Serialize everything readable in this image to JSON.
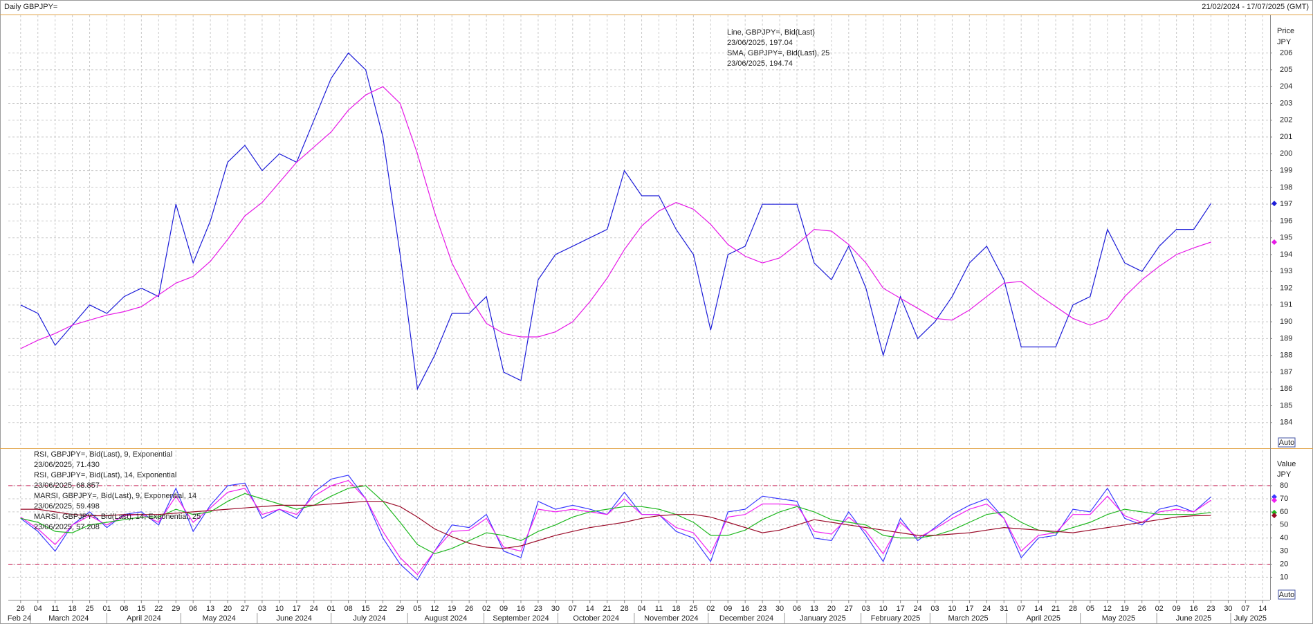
{
  "header": {
    "title": "Daily GBPJPY=",
    "range": "21/02/2024 - 17/07/2025 (GMT)"
  },
  "chart_data": [
    {
      "type": "line",
      "axis_title": "Price",
      "axis_unit": "JPY",
      "auto_label": "Auto",
      "x": [
        "2024-02-26",
        "2024-03-04",
        "2024-03-11",
        "2024-03-18",
        "2024-03-25",
        "2024-04-01",
        "2024-04-08",
        "2024-04-15",
        "2024-04-22",
        "2024-04-29",
        "2024-05-06",
        "2024-05-13",
        "2024-05-20",
        "2024-05-27",
        "2024-06-03",
        "2024-06-10",
        "2024-06-17",
        "2024-06-24",
        "2024-07-01",
        "2024-07-08",
        "2024-07-15",
        "2024-07-22",
        "2024-07-29",
        "2024-08-05",
        "2024-08-12",
        "2024-08-19",
        "2024-08-26",
        "2024-09-02",
        "2024-09-09",
        "2024-09-16",
        "2024-09-23",
        "2024-09-30",
        "2024-10-07",
        "2024-10-14",
        "2024-10-21",
        "2024-10-28",
        "2024-11-04",
        "2024-11-11",
        "2024-11-18",
        "2024-11-25",
        "2024-12-02",
        "2024-12-09",
        "2024-12-16",
        "2024-12-23",
        "2024-12-30",
        "2025-01-06",
        "2025-01-13",
        "2025-01-20",
        "2025-01-27",
        "2025-02-03",
        "2025-02-10",
        "2025-02-17",
        "2025-02-24",
        "2025-03-03",
        "2025-03-10",
        "2025-03-17",
        "2025-03-24",
        "2025-03-31",
        "2025-04-07",
        "2025-04-14",
        "2025-04-21",
        "2025-04-28",
        "2025-05-05",
        "2025-05-12",
        "2025-05-19",
        "2025-05-26",
        "2025-06-02",
        "2025-06-09",
        "2025-06-16",
        "2025-06-23"
      ],
      "xlim": [
        "2024-02-21",
        "2025-07-17"
      ],
      "ylim": [
        182.55,
        208.25
      ],
      "yticks": [
        184,
        185,
        186,
        187,
        188,
        189,
        190,
        191,
        192,
        193,
        194,
        195,
        196,
        197,
        198,
        199,
        200,
        201,
        202,
        203,
        204,
        205,
        206
      ],
      "grid": true,
      "series": [
        {
          "name": "Line, GBPJPY=, Bid(Last)",
          "value_label": "23/06/2025, 197.04",
          "color": "#1c1cd8",
          "values": [
            191.0,
            190.5,
            188.6,
            189.8,
            191.0,
            190.5,
            191.5,
            192.0,
            191.5,
            197.0,
            193.5,
            196.0,
            199.5,
            200.5,
            199.0,
            200.0,
            199.5,
            202.0,
            204.5,
            206.0,
            205.0,
            201.0,
            194.0,
            186.0,
            188.0,
            190.5,
            190.5,
            191.5,
            187.0,
            186.5,
            192.5,
            194.0,
            194.5,
            195.0,
            195.5,
            199.0,
            197.5,
            197.5,
            195.5,
            194.0,
            189.5,
            194.0,
            194.5,
            197.0,
            197.0,
            197.0,
            193.5,
            192.5,
            194.5,
            192.0,
            188.0,
            191.5,
            189.0,
            190.0,
            191.5,
            193.5,
            194.5,
            192.5,
            188.5,
            188.5,
            188.5,
            191.0,
            191.5,
            195.5,
            193.5,
            193.0,
            194.5,
            195.5,
            195.5,
            197.04
          ]
        },
        {
          "name": "SMA, GBPJPY=, Bid(Last),  25",
          "value_label": "23/06/2025, 194.74",
          "color": "#e619e6",
          "values": [
            188.4,
            188.9,
            189.3,
            189.8,
            190.1,
            190.4,
            190.6,
            190.9,
            191.6,
            192.3,
            192.7,
            193.6,
            194.9,
            196.3,
            197.1,
            198.3,
            199.5,
            200.4,
            201.3,
            202.6,
            203.5,
            204.0,
            203.0,
            200.0,
            196.5,
            193.5,
            191.5,
            189.9,
            189.3,
            189.1,
            189.1,
            189.4,
            190.0,
            191.2,
            192.6,
            194.3,
            195.7,
            196.6,
            197.1,
            196.7,
            195.8,
            194.6,
            193.9,
            193.5,
            193.8,
            194.6,
            195.5,
            195.4,
            194.6,
            193.5,
            192.0,
            191.4,
            190.8,
            190.2,
            190.1,
            190.7,
            191.5,
            192.3,
            192.4,
            191.6,
            190.9,
            190.2,
            189.8,
            190.2,
            191.5,
            192.5,
            193.3,
            194.0,
            194.4,
            194.74
          ]
        }
      ]
    },
    {
      "type": "line",
      "axis_title": "Value",
      "axis_unit": "JPY",
      "auto_label": "Auto",
      "ylim": [
        -6.7,
        107
      ],
      "yticks": [
        10,
        20,
        30,
        40,
        50,
        60,
        70,
        80
      ],
      "levels": [
        80,
        20
      ],
      "level_color": "#c0003c",
      "grid": true,
      "xticks": [
        {
          "value": "2024-02-26",
          "label": "26"
        },
        {
          "value": "2024-03-04",
          "label": "04"
        },
        {
          "value": "2024-03-11",
          "label": "11"
        },
        {
          "value": "2024-03-18",
          "label": "18"
        },
        {
          "value": "2024-03-25",
          "label": "25"
        },
        {
          "value": "2024-04-01",
          "label": "01"
        },
        {
          "value": "2024-04-08",
          "label": "08"
        },
        {
          "value": "2024-04-15",
          "label": "15"
        },
        {
          "value": "2024-04-22",
          "label": "22"
        },
        {
          "value": "2024-04-29",
          "label": "29"
        },
        {
          "value": "2024-05-06",
          "label": "06"
        },
        {
          "value": "2024-05-13",
          "label": "13"
        },
        {
          "value": "2024-05-20",
          "label": "20"
        },
        {
          "value": "2024-05-27",
          "label": "27"
        },
        {
          "value": "2024-06-03",
          "label": "03"
        },
        {
          "value": "2024-06-10",
          "label": "10"
        },
        {
          "value": "2024-06-17",
          "label": "17"
        },
        {
          "value": "2024-06-24",
          "label": "24"
        },
        {
          "value": "2024-07-01",
          "label": "01"
        },
        {
          "value": "2024-07-08",
          "label": "08"
        },
        {
          "value": "2024-07-15",
          "label": "15"
        },
        {
          "value": "2024-07-22",
          "label": "22"
        },
        {
          "value": "2024-07-29",
          "label": "29"
        },
        {
          "value": "2024-08-05",
          "label": "05"
        },
        {
          "value": "2024-08-12",
          "label": "12"
        },
        {
          "value": "2024-08-19",
          "label": "19"
        },
        {
          "value": "2024-08-26",
          "label": "26"
        },
        {
          "value": "2024-09-02",
          "label": "02"
        },
        {
          "value": "2024-09-09",
          "label": "09"
        },
        {
          "value": "2024-09-16",
          "label": "16"
        },
        {
          "value": "2024-09-23",
          "label": "23"
        },
        {
          "value": "2024-09-30",
          "label": "30"
        },
        {
          "value": "2024-10-07",
          "label": "07"
        },
        {
          "value": "2024-10-14",
          "label": "14"
        },
        {
          "value": "2024-10-21",
          "label": "21"
        },
        {
          "value": "2024-10-28",
          "label": "28"
        },
        {
          "value": "2024-11-04",
          "label": "04"
        },
        {
          "value": "2024-11-11",
          "label": "11"
        },
        {
          "value": "2024-11-18",
          "label": "18"
        },
        {
          "value": "2024-11-25",
          "label": "25"
        },
        {
          "value": "2024-12-02",
          "label": "02"
        },
        {
          "value": "2024-12-09",
          "label": "09"
        },
        {
          "value": "2024-12-16",
          "label": "16"
        },
        {
          "value": "2024-12-23",
          "label": "23"
        },
        {
          "value": "2024-12-30",
          "label": "30"
        },
        {
          "value": "2025-01-06",
          "label": "06"
        },
        {
          "value": "2025-01-13",
          "label": "13"
        },
        {
          "value": "2025-01-20",
          "label": "20"
        },
        {
          "value": "2025-01-27",
          "label": "27"
        },
        {
          "value": "2025-02-03",
          "label": "03"
        },
        {
          "value": "2025-02-10",
          "label": "10"
        },
        {
          "value": "2025-02-17",
          "label": "17"
        },
        {
          "value": "2025-02-24",
          "label": "24"
        },
        {
          "value": "2025-03-03",
          "label": "03"
        },
        {
          "value": "2025-03-10",
          "label": "10"
        },
        {
          "value": "2025-03-17",
          "label": "17"
        },
        {
          "value": "2025-03-24",
          "label": "24"
        },
        {
          "value": "2025-03-31",
          "label": "31"
        },
        {
          "value": "2025-04-07",
          "label": "07"
        },
        {
          "value": "2025-04-14",
          "label": "14"
        },
        {
          "value": "2025-04-21",
          "label": "21"
        },
        {
          "value": "2025-04-28",
          "label": "28"
        },
        {
          "value": "2025-05-05",
          "label": "05"
        },
        {
          "value": "2025-05-12",
          "label": "12"
        },
        {
          "value": "2025-05-19",
          "label": "19"
        },
        {
          "value": "2025-05-26",
          "label": "26"
        },
        {
          "value": "2025-06-02",
          "label": "02"
        },
        {
          "value": "2025-06-09",
          "label": "09"
        },
        {
          "value": "2025-06-16",
          "label": "16"
        },
        {
          "value": "2025-06-23",
          "label": "23"
        },
        {
          "value": "2025-06-30",
          "label": "30"
        },
        {
          "value": "2025-07-07",
          "label": "07"
        },
        {
          "value": "2025-07-14",
          "label": "14"
        }
      ],
      "month_labels": [
        {
          "value": "2024-02",
          "label": "Feb 24"
        },
        {
          "value": "2024-03",
          "label": "March 2024"
        },
        {
          "value": "2024-04",
          "label": "April 2024"
        },
        {
          "value": "2024-05",
          "label": "May 2024"
        },
        {
          "value": "2024-06",
          "label": "June 2024"
        },
        {
          "value": "2024-07",
          "label": "July 2024"
        },
        {
          "value": "2024-08",
          "label": "August 2024"
        },
        {
          "value": "2024-09",
          "label": "September 2024"
        },
        {
          "value": "2024-10",
          "label": "October 2024"
        },
        {
          "value": "2024-11",
          "label": "November 2024"
        },
        {
          "value": "2024-12",
          "label": "December 2024"
        },
        {
          "value": "2025-01",
          "label": "January 2025"
        },
        {
          "value": "2025-02",
          "label": "February 2025"
        },
        {
          "value": "2025-03",
          "label": "March 2025"
        },
        {
          "value": "2025-04",
          "label": "April 2025"
        },
        {
          "value": "2025-05",
          "label": "May 2025"
        },
        {
          "value": "2025-06",
          "label": "June 2025"
        },
        {
          "value": "2025-07",
          "label": "July 2025"
        }
      ],
      "series": [
        {
          "name": "RSI, GBPJPY=, Bid(Last),  9, Exponential",
          "value_label": "23/06/2025, 71.430",
          "color": "#3a3aff",
          "values": [
            55,
            45,
            30,
            50,
            60,
            48,
            58,
            60,
            50,
            78,
            45,
            65,
            80,
            82,
            55,
            62,
            55,
            75,
            85,
            88,
            70,
            40,
            20,
            8,
            30,
            50,
            48,
            58,
            30,
            25,
            68,
            62,
            65,
            62,
            58,
            75,
            58,
            58,
            45,
            40,
            22,
            60,
            62,
            72,
            70,
            68,
            40,
            38,
            60,
            42,
            22,
            55,
            38,
            48,
            58,
            65,
            70,
            55,
            25,
            40,
            42,
            62,
            60,
            78,
            55,
            50,
            62,
            65,
            60,
            71.43
          ]
        },
        {
          "name": "RSI, GBPJPY=, Bid(Last),  14, Exponential",
          "value_label": "23/06/2025, 68.857",
          "color": "#f01ef0",
          "values": [
            56,
            47,
            35,
            50,
            57,
            50,
            57,
            58,
            52,
            72,
            52,
            63,
            75,
            78,
            58,
            62,
            58,
            72,
            80,
            84,
            70,
            45,
            25,
            12,
            30,
            45,
            46,
            55,
            33,
            30,
            62,
            60,
            62,
            60,
            58,
            70,
            58,
            58,
            48,
            44,
            28,
            56,
            58,
            66,
            66,
            65,
            45,
            43,
            56,
            45,
            28,
            52,
            40,
            47,
            55,
            62,
            66,
            55,
            30,
            42,
            44,
            58,
            58,
            72,
            57,
            52,
            60,
            62,
            60,
            68.857
          ]
        },
        {
          "name": "MARSI, GBPJPY=, Bid(Last),  9, Exponential, 14",
          "value_label": "23/06/2025, 59.498",
          "color": "#1fb81f",
          "values": [
            55,
            52,
            45,
            44,
            50,
            52,
            54,
            56,
            56,
            62,
            58,
            60,
            68,
            74,
            70,
            66,
            62,
            65,
            72,
            78,
            80,
            68,
            52,
            35,
            28,
            32,
            38,
            44,
            42,
            38,
            45,
            50,
            56,
            60,
            62,
            64,
            64,
            62,
            58,
            52,
            42,
            42,
            46,
            54,
            60,
            64,
            60,
            54,
            52,
            50,
            42,
            40,
            40,
            42,
            46,
            52,
            58,
            60,
            52,
            46,
            44,
            48,
            52,
            58,
            62,
            60,
            58,
            58,
            58,
            59.498
          ]
        },
        {
          "name": "MARSI, GBPJPY=, Bid(Last),  14, Exponential, 25",
          "value_label": "23/06/2025, 57.208",
          "color": "#9a0a28",
          "values": [
            62,
            62,
            60,
            58,
            57,
            57,
            58,
            58,
            58,
            59,
            60,
            61,
            62,
            63,
            64,
            65,
            65,
            65,
            66,
            67,
            68,
            68,
            64,
            56,
            47,
            41,
            36,
            33,
            32,
            34,
            38,
            42,
            45,
            48,
            50,
            52,
            55,
            57,
            58,
            58,
            56,
            52,
            48,
            44,
            46,
            50,
            54,
            52,
            50,
            48,
            46,
            44,
            42,
            42,
            43,
            44,
            46,
            48,
            47,
            46,
            45,
            44,
            46,
            48,
            50,
            52,
            54,
            56,
            57,
            57.208
          ]
        }
      ]
    }
  ]
}
